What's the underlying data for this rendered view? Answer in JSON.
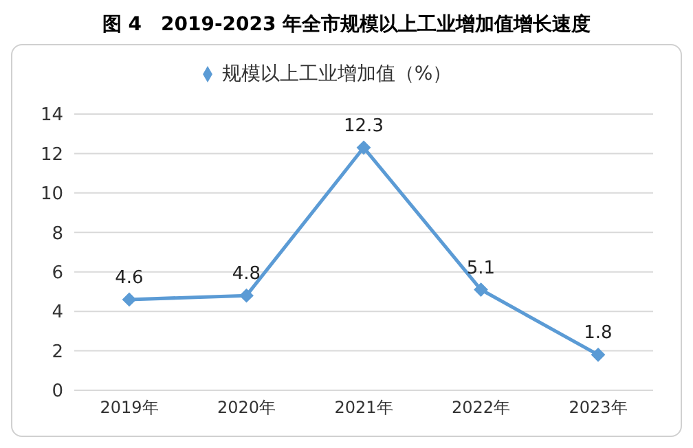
{
  "chart_data": {
    "type": "line",
    "title": "图 4　2019-2023 年全市规模以上工业增加值增长速度",
    "categories": [
      "2019年",
      "2020年",
      "2021年",
      "2022年",
      "2023年"
    ],
    "series": [
      {
        "name": "规模以上工业增加值（%）",
        "color": "#5b9bd5",
        "values": [
          4.6,
          4.8,
          12.3,
          5.1,
          1.8
        ]
      }
    ],
    "ylim": [
      0,
      14
    ],
    "yticks": [
      0,
      2,
      4,
      6,
      8,
      10,
      12,
      14
    ],
    "grid": "y",
    "legend": "top",
    "marker": "diamond",
    "line_style": "solid",
    "data_labels": true
  }
}
